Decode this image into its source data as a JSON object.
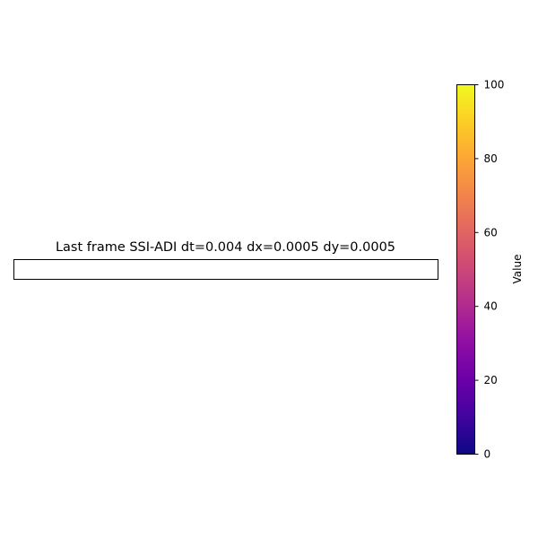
{
  "chart_data": {
    "type": "heatmap",
    "title": "Last frame SSI-ADI dt=0.004 dx=0.0005 dy=0.0005",
    "values": [],
    "colorbar": {
      "label": "Value",
      "range": [
        0,
        100
      ],
      "ticks": [
        "0",
        "20",
        "40",
        "60",
        "80",
        "100"
      ],
      "colormap": "plasma",
      "orientation": "vertical",
      "position": "right"
    },
    "grid": false,
    "colors": {
      "plasma_stops": [
        "#0d0887",
        "#41049d",
        "#6a00a8",
        "#8f0da4",
        "#b12a90",
        "#cc4778",
        "#e16462",
        "#f2844b",
        "#fca636",
        "#fcce25",
        "#f0f921"
      ]
    }
  }
}
